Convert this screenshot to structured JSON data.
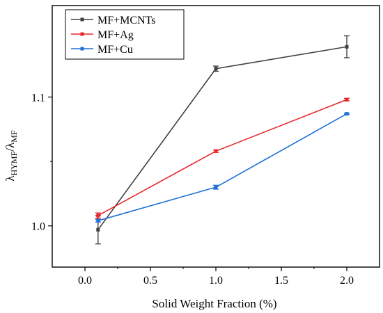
{
  "chart_data": {
    "type": "line",
    "title": "",
    "xlabel": "Solid Weight Fraction (%)",
    "ylabel_main": "λ",
    "ylabel_sub1": "HYMF",
    "ylabel_sep": "/",
    "ylabel_sub2": "MF",
    "xlim": [
      -0.25,
      2.25
    ],
    "ylim": [
      0.968,
      1.171
    ],
    "xticks": [
      0.0,
      0.5,
      1.0,
      1.5,
      2.0
    ],
    "xtick_labels": [
      "0.0",
      "0.5",
      "1.0",
      "1.5",
      "2.0"
    ],
    "yticks": [
      1.0,
      1.1
    ],
    "ytick_labels": [
      "1.0",
      "1.1"
    ],
    "legend_position": "top-left",
    "grid": false,
    "series": [
      {
        "name": "MF+MCNTs",
        "color": "#404040",
        "x": [
          0.1,
          1.0,
          2.0
        ],
        "y": [
          0.997,
          1.122,
          1.139
        ],
        "err": [
          0.011,
          0.002,
          0.0085
        ]
      },
      {
        "name": "MF+Ag",
        "color": "#e8262a",
        "x": [
          0.1,
          1.0,
          2.0
        ],
        "y": [
          1.008,
          1.058,
          1.098
        ],
        "err": [
          0.002,
          0.001,
          0.001
        ]
      },
      {
        "name": "MF+Cu",
        "color": "#1f6fd6",
        "x": [
          0.1,
          1.0,
          2.0
        ],
        "y": [
          1.004,
          1.03,
          1.087
        ],
        "err": [
          0.001,
          0.0015,
          0.0005
        ]
      }
    ]
  }
}
